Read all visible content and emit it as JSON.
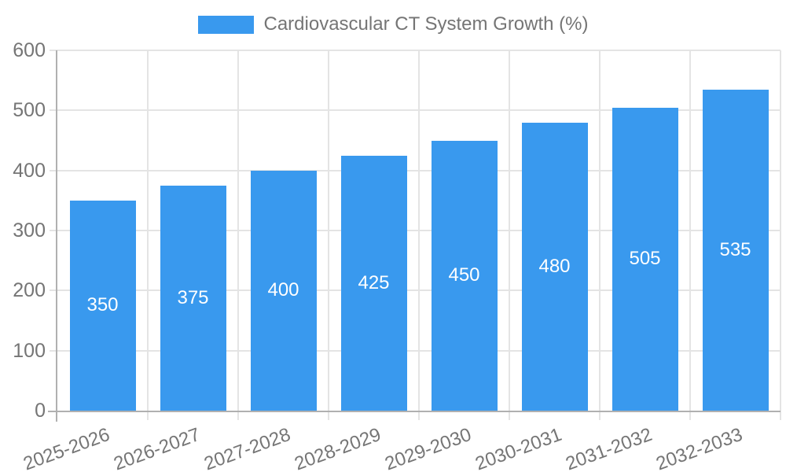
{
  "chart_data": {
    "type": "bar",
    "title": "Cardiovascular CT System Growth (%)",
    "categories": [
      "2025-2026",
      "2026-2027",
      "2027-2028",
      "2028-2029",
      "2029-2030",
      "2030-2031",
      "2031-2032",
      "2032-2033"
    ],
    "values": [
      350,
      375,
      400,
      425,
      450,
      480,
      505,
      535
    ],
    "xlabel": "",
    "ylabel": "",
    "ylim": [
      0,
      600
    ],
    "yticks": [
      0,
      100,
      200,
      300,
      400,
      500,
      600
    ],
    "grid": true,
    "legend_position": "top",
    "legend_label": "Cardiovascular CT System Growth (%)",
    "x_label_rotation_deg": -20,
    "value_labels": [
      "350",
      "375",
      "400",
      "425",
      "450",
      "480",
      "505",
      "535"
    ],
    "colors": {
      "bar": "#3999ee",
      "grid": "#e4e4e4",
      "axis": "#b0b0b0",
      "tick_label": "#757575",
      "legend_text": "#757575",
      "value_label": "#ffffff",
      "background": "#ffffff"
    }
  }
}
